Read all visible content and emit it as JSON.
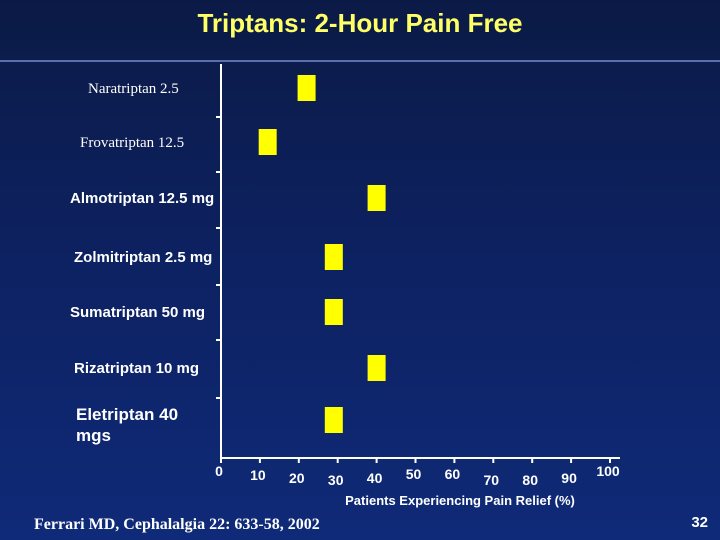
{
  "title": "Triptans: 2-Hour Pain Free",
  "source": "Ferrari MD, Cephalalgia 22: 633-58, 2002",
  "page_number": "32",
  "colors": {
    "marker": "#ffff00",
    "title": "#ffff66",
    "axis": "#ffffff"
  },
  "chart_data": {
    "type": "scatter",
    "categories": [
      "Naratriptan 2.5",
      "Frovatriptan 12.5",
      "Almotriptan 12.5 mg",
      "Zolmitriptan 2.5 mg",
      "Sumatriptan 50 mg",
      "Rizatriptan 10 mg",
      "Eletriptan 40 mgs"
    ],
    "values": [
      22,
      12,
      40,
      29,
      29,
      40,
      29
    ],
    "xticks": [
      "0",
      "10",
      "20",
      "30",
      "40",
      "50",
      "60",
      "70",
      "80",
      "90",
      "100"
    ],
    "xlabel": "Patients Experiencing Pain Relief (%)",
    "xlim": [
      0,
      100
    ],
    "grid": false
  }
}
